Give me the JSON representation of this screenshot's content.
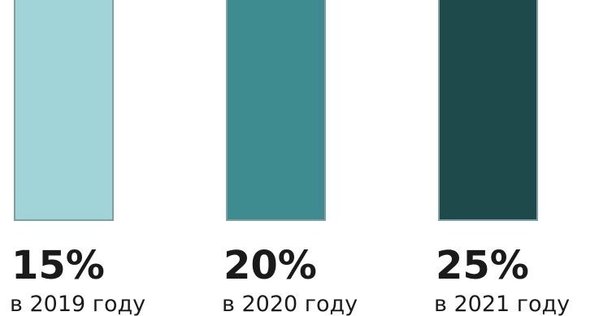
{
  "chart_data": {
    "type": "bar",
    "categories": [
      "в 2019 году",
      "в 2020 году",
      "в 2021 году"
    ],
    "values": [
      15,
      20,
      25
    ],
    "value_labels": [
      "15%",
      "20%",
      "25%"
    ],
    "unit": "%",
    "colors": [
      "#a0d4d8",
      "#3e8b90",
      "#1f4a4b"
    ],
    "border_color": "#7f9fa1",
    "grid": false,
    "legend": "none"
  }
}
